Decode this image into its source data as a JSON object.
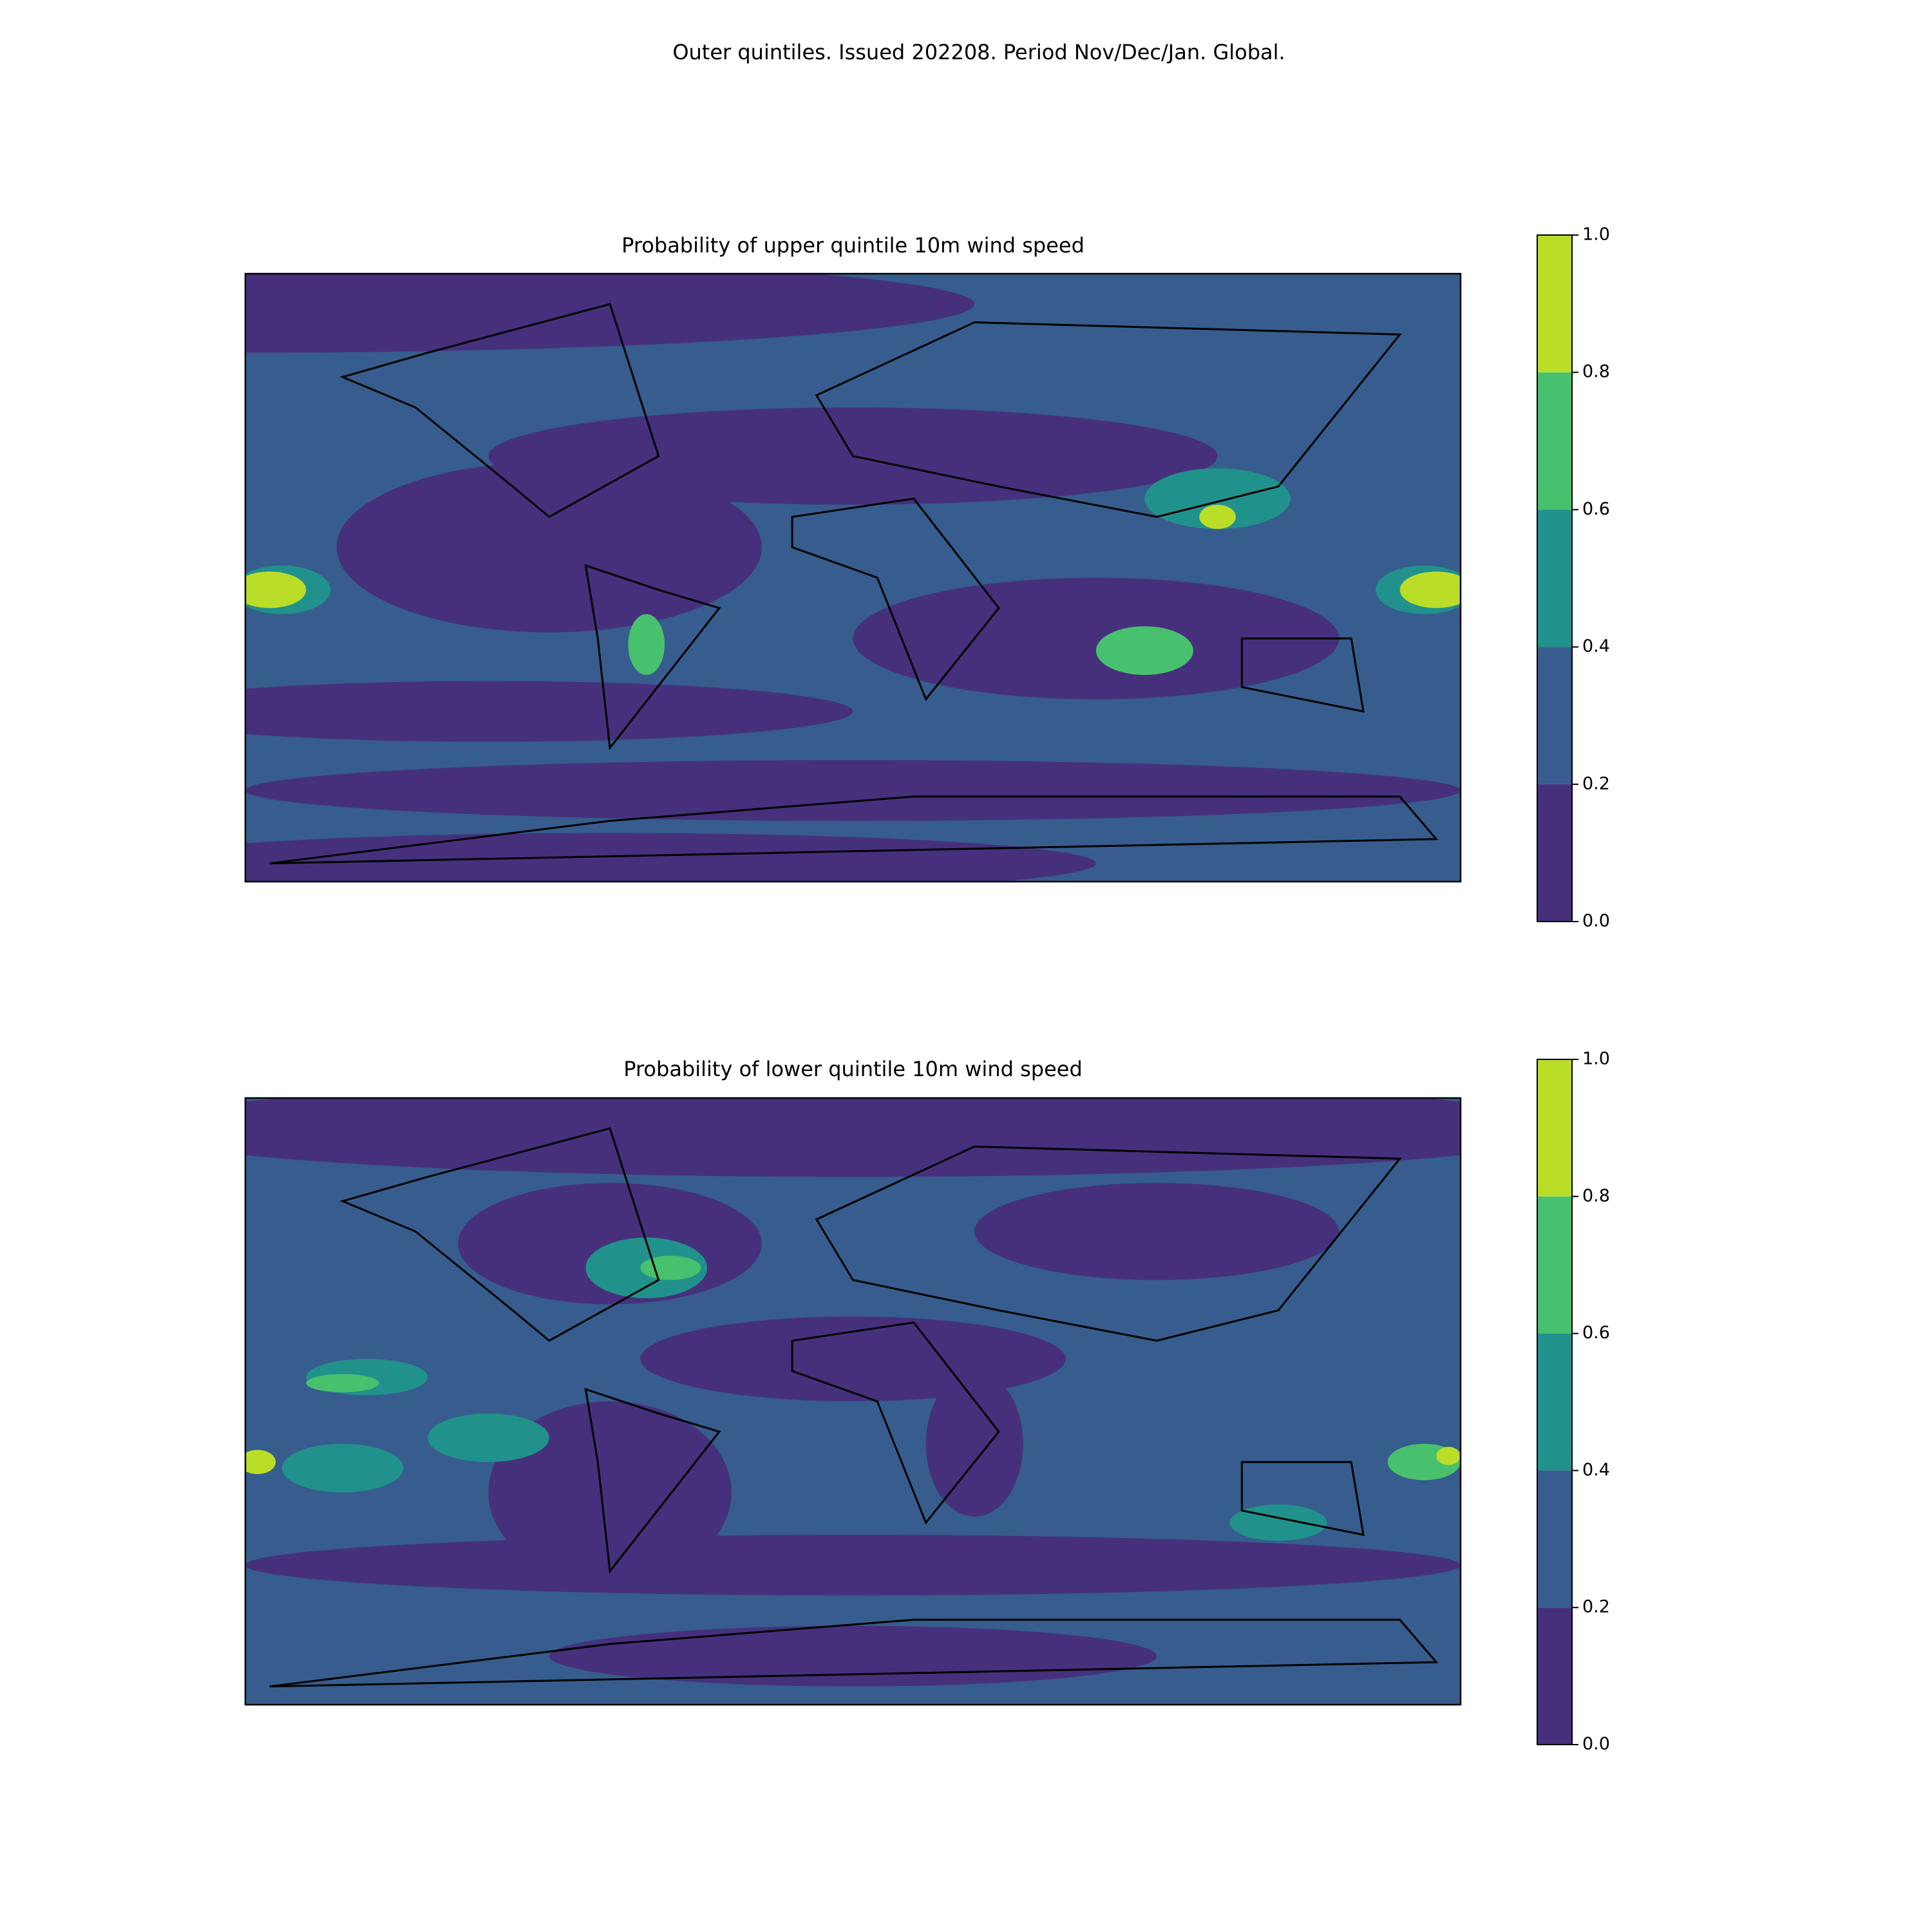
{
  "title": "Outer quintiles. Issued 202208. Period Nov/Dec/Jan. Global.",
  "chart_data": [
    {
      "type": "contour-map",
      "title": "Probability of upper quintile 10m wind speed",
      "colors": [
        "#46307c",
        "#365d8d",
        "#21918c",
        "#48c16e",
        "#bade28"
      ],
      "ylim": [
        0,
        1
      ],
      "yticks": [
        {
          "value": 0,
          "label": "0.0"
        },
        {
          "value": 0.2,
          "label": "0.2"
        },
        {
          "value": 0.4,
          "label": "0.4"
        },
        {
          "value": 0.6,
          "label": "0.6"
        },
        {
          "value": 0.8,
          "label": "0.8"
        },
        {
          "value": 1,
          "label": "1.0"
        }
      ]
    },
    {
      "type": "contour-map",
      "title": "Probability of lower quintile 10m wind speed",
      "colors": [
        "#46307c",
        "#365d8d",
        "#21918c",
        "#48c16e",
        "#bade28"
      ],
      "ylim": [
        0,
        1
      ],
      "yticks": [
        {
          "value": 0,
          "label": "0.0"
        },
        {
          "value": 0.2,
          "label": "0.2"
        },
        {
          "value": 0.4,
          "label": "0.4"
        },
        {
          "value": 0.6,
          "label": "0.6"
        },
        {
          "value": 0.8,
          "label": "0.8"
        },
        {
          "value": 1,
          "label": "1.0"
        }
      ]
    }
  ]
}
